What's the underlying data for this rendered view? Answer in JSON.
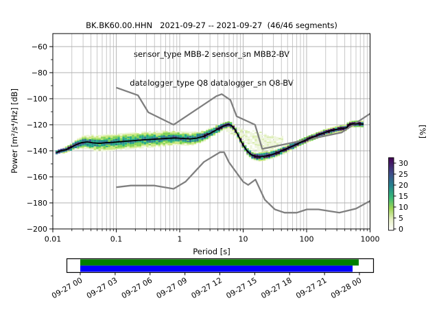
{
  "title": {
    "line1": "BK.BK60.00.HHN   2021-09-27 -- 2021-09-27  (46/46 segments)",
    "line2": "sensor_type MBB-2 sensor_sn MBB2-BV",
    "line3": "datalogger_type Q8 datalogger_sn Q8-BV"
  },
  "chart_data": {
    "type": "heatmap",
    "description": "Probabilistic power spectral density (PPSD) of seismic noise with Peterson NLNM/NHNM reference curves and mean PSD line",
    "x_axis": {
      "label": "Period [s]",
      "scale": "log",
      "range": [
        0.01,
        1000
      ],
      "ticks": [
        {
          "value": 0.01,
          "label": "0.01"
        },
        {
          "value": 0.1,
          "label": "0.1"
        },
        {
          "value": 1,
          "label": "1"
        },
        {
          "value": 10,
          "label": "10"
        },
        {
          "value": 100,
          "label": "100"
        },
        {
          "value": 1000,
          "label": "1000"
        }
      ]
    },
    "y_axis": {
      "label": "Power [m²/s⁴/Hz] [dB]",
      "range": [
        -200,
        -50
      ],
      "ticks": [
        {
          "value": -60,
          "label": "−60"
        },
        {
          "value": -80,
          "label": "−80"
        },
        {
          "value": -100,
          "label": "−100"
        },
        {
          "value": -120,
          "label": "−120"
        },
        {
          "value": -140,
          "label": "−140"
        },
        {
          "value": -160,
          "label": "−160"
        },
        {
          "value": -180,
          "label": "−180"
        },
        {
          "value": -200,
          "label": "−200"
        }
      ]
    },
    "colorbar": {
      "label": "[%]",
      "max_value": 32,
      "ticks": [
        {
          "value": 30,
          "label": "30"
        },
        {
          "value": 25,
          "label": "25"
        },
        {
          "value": 20,
          "label": "20"
        },
        {
          "value": 15,
          "label": "15"
        },
        {
          "value": 10,
          "label": "10"
        },
        {
          "value": 5,
          "label": "5"
        },
        {
          "value": 0,
          "label": "0"
        }
      ],
      "gradient": [
        {
          "offset": 0.0,
          "color": "#ffffff"
        },
        {
          "offset": 0.15,
          "color": "#e7f1c5"
        },
        {
          "offset": 0.3,
          "color": "#9fd655"
        },
        {
          "offset": 0.45,
          "color": "#38b977"
        },
        {
          "offset": 0.61,
          "color": "#25848e"
        },
        {
          "offset": 0.78,
          "color": "#3f4d8a"
        },
        {
          "offset": 1.0,
          "color": "#440154"
        }
      ]
    },
    "noise_models": {
      "color": "#7f7f7f",
      "nhnm": [
        [
          0.1,
          -91.5
        ],
        [
          0.22,
          -97.4
        ],
        [
          0.32,
          -110.5
        ],
        [
          0.8,
          -120.0
        ],
        [
          3.8,
          -98.0
        ],
        [
          4.6,
          -96.5
        ],
        [
          6.3,
          -101.0
        ],
        [
          7.9,
          -113.5
        ],
        [
          15.4,
          -120.0
        ],
        [
          20.0,
          -138.5
        ],
        [
          354.8,
          -126.0
        ],
        [
          1000,
          -111.5
        ]
      ],
      "nlnm": [
        [
          0.1,
          -168.0
        ],
        [
          0.17,
          -166.7
        ],
        [
          0.4,
          -166.7
        ],
        [
          0.8,
          -169.2
        ],
        [
          1.24,
          -163.7
        ],
        [
          2.4,
          -148.6
        ],
        [
          4.3,
          -141.1
        ],
        [
          5.0,
          -141.1
        ],
        [
          6.0,
          -149.0
        ],
        [
          10.0,
          -163.8
        ],
        [
          12.0,
          -166.2
        ],
        [
          15.6,
          -162.1
        ],
        [
          21.9,
          -177.5
        ],
        [
          31.6,
          -185.0
        ],
        [
          45.0,
          -187.5
        ],
        [
          70.0,
          -187.5
        ],
        [
          101.0,
          -185.0
        ],
        [
          154.0,
          -185.0
        ],
        [
          328.0,
          -187.5
        ],
        [
          600.0,
          -184.4
        ],
        [
          1000,
          -178.5
        ]
      ]
    },
    "mean_line": {
      "color": "#000000",
      "points": [
        [
          0.0115,
          -141.2
        ],
        [
          0.013,
          -140.2
        ],
        [
          0.016,
          -139.2
        ],
        [
          0.019,
          -137.6
        ],
        [
          0.023,
          -135.4
        ],
        [
          0.028,
          -133.8
        ],
        [
          0.035,
          -133.2
        ],
        [
          0.043,
          -133.9
        ],
        [
          0.055,
          -134.3
        ],
        [
          0.07,
          -133.7
        ],
        [
          0.09,
          -133.5
        ],
        [
          0.115,
          -133.0
        ],
        [
          0.15,
          -132.6
        ],
        [
          0.2,
          -132.1
        ],
        [
          0.27,
          -131.6
        ],
        [
          0.37,
          -131.2
        ],
        [
          0.5,
          -130.8
        ],
        [
          0.65,
          -130.4
        ],
        [
          0.85,
          -130.2
        ],
        [
          1.1,
          -130.5
        ],
        [
          1.45,
          -130.9
        ],
        [
          1.85,
          -130.3
        ],
        [
          2.4,
          -128.8
        ],
        [
          3.1,
          -126.3
        ],
        [
          4.0,
          -123.2
        ],
        [
          4.9,
          -121.0
        ],
        [
          5.8,
          -119.8
        ],
        [
          6.5,
          -120.4
        ],
        [
          7.4,
          -123.5
        ],
        [
          8.5,
          -129.0
        ],
        [
          9.8,
          -135.0
        ],
        [
          11.5,
          -140.0
        ],
        [
          13.5,
          -143.2
        ],
        [
          16,
          -144.6
        ],
        [
          19,
          -144.5
        ],
        [
          23,
          -143.9
        ],
        [
          28,
          -143.0
        ],
        [
          35,
          -141.4
        ],
        [
          45,
          -139.2
        ],
        [
          57,
          -136.9
        ],
        [
          72,
          -134.6
        ],
        [
          92,
          -132.2
        ],
        [
          115,
          -130.3
        ],
        [
          145,
          -128.3
        ],
        [
          185,
          -126.3
        ],
        [
          235,
          -124.8
        ],
        [
          300,
          -123.5
        ],
        [
          370,
          -122.7
        ],
        [
          430,
          -122.3
        ],
        [
          460,
          -119.9
        ],
        [
          550,
          -119.4
        ],
        [
          680,
          -119.2
        ],
        [
          790,
          -119.6
        ]
      ]
    },
    "histogram_band": {
      "period_range": [
        0.0115,
        790
      ],
      "db_bin_width": 1,
      "octave_fraction": 8,
      "halfwidth": [
        [
          0.0115,
          1.5
        ],
        [
          0.016,
          2.2
        ],
        [
          0.022,
          3.5
        ],
        [
          0.03,
          5.5
        ],
        [
          0.05,
          7
        ],
        [
          0.09,
          7.5
        ],
        [
          0.15,
          7.5
        ],
        [
          0.25,
          7
        ],
        [
          0.4,
          6.8
        ],
        [
          0.7,
          6.3
        ],
        [
          1.1,
          6.2
        ],
        [
          1.7,
          5.6
        ],
        [
          2.5,
          4.6
        ],
        [
          3.5,
          3.6
        ],
        [
          5,
          3.0
        ],
        [
          6.5,
          2.6
        ],
        [
          8,
          2.4
        ],
        [
          10,
          2.6
        ],
        [
          13,
          3.2
        ],
        [
          18,
          3.6
        ],
        [
          25,
          3.6
        ],
        [
          35,
          3.2
        ],
        [
          50,
          3.0
        ],
        [
          80,
          2.8
        ],
        [
          130,
          2.6
        ],
        [
          250,
          2.4
        ],
        [
          400,
          2.4
        ],
        [
          600,
          2.6
        ],
        [
          790,
          2.6
        ]
      ],
      "palette": [
        {
          "min_pct": 26,
          "color": "#3b0a52"
        },
        {
          "min_pct": 20,
          "color": "#414487"
        },
        {
          "min_pct": 14,
          "color": "#2a788e"
        },
        {
          "min_pct": 9,
          "color": "#22a884"
        },
        {
          "min_pct": 5,
          "color": "#7ad151"
        },
        {
          "min_pct": 2.5,
          "color": "#c9e77f"
        },
        {
          "min_pct": 0,
          "color": "#eef5d8"
        }
      ]
    },
    "outlier_cloud": {
      "period_range": [
        5.6,
        42
      ],
      "center": [
        [
          5.6,
          -123
        ],
        [
          10,
          -129
        ],
        [
          15,
          -132
        ],
        [
          22,
          -133.5
        ],
        [
          30,
          -133.5
        ],
        [
          42,
          -132
        ]
      ],
      "halfwidth": [
        [
          5.6,
          3
        ],
        [
          10,
          5
        ],
        [
          15,
          6.5
        ],
        [
          22,
          6.5
        ],
        [
          30,
          5
        ],
        [
          42,
          3
        ]
      ],
      "colors": [
        "#eef5dc",
        "#d9ecae"
      ]
    }
  },
  "timeline": {
    "tick_labels": [
      "09-27 00",
      "09-27 03",
      "09-27 06",
      "09-27 09",
      "09-27 12",
      "09-27 15",
      "09-27 18",
      "09-27 21",
      "09-28 00"
    ],
    "bars": [
      {
        "name": "time-range",
        "color": "#008000",
        "start": 0,
        "end": 0.9975
      },
      {
        "name": "data-coverage",
        "color": "#0000ff",
        "start": 0,
        "end": 0.9754
      }
    ]
  }
}
